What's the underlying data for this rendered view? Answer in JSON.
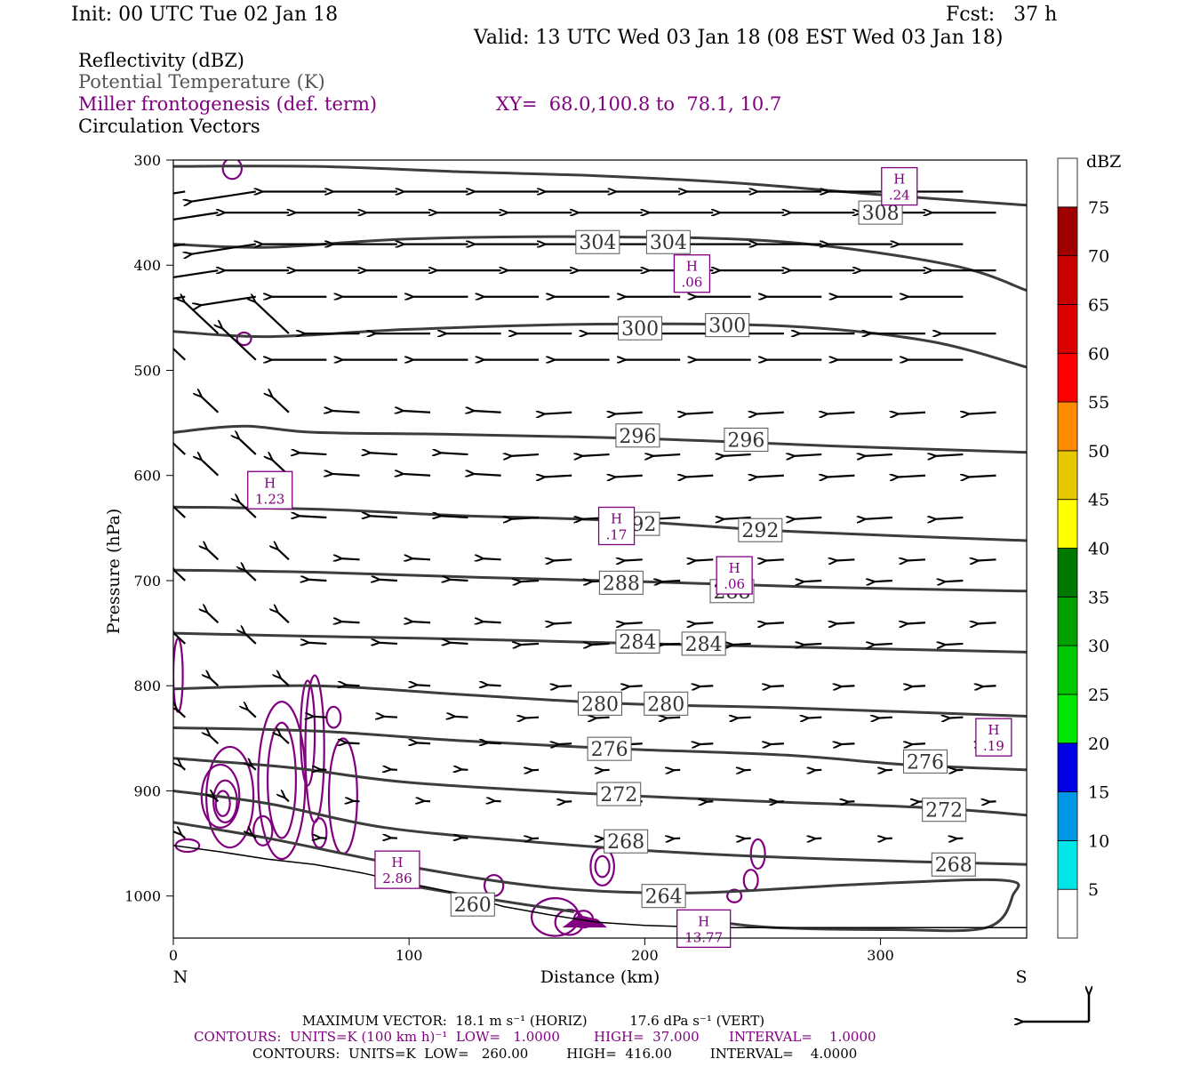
{
  "header": {
    "init": "Init: 00 UTC Tue 02 Jan 18",
    "fcst": "Fcst:   37 h",
    "valid": "Valid: 13 UTC Wed 03 Jan 18 (08 EST Wed 03 Jan 18)"
  },
  "legend": {
    "line1": "Reflectivity (dBZ)",
    "line2": "Potential Temperature (K)",
    "line3": "Miller frontogenesis (def. term)",
    "xy": "XY=  68.0,100.8 to  78.1, 10.7",
    "line4": "Circulation Vectors"
  },
  "colors": {
    "theta": "#3c3c3c",
    "fronto": "#800080",
    "vector": "#000000"
  },
  "chart_data": {
    "type": "cross-section",
    "xlabel": "Distance (km)",
    "ylabel": "Pressure (hPa)",
    "xlim": [
      0,
      362
    ],
    "ylim": [
      300,
      1040
    ],
    "x_ticks": [
      0,
      100,
      200,
      300
    ],
    "y_ticks": [
      300,
      400,
      500,
      600,
      700,
      800,
      900,
      1000
    ],
    "left_end_label": "N",
    "right_end_label": "S",
    "colorbar": {
      "title": "dBZ",
      "levels": [
        "5",
        "10",
        "15",
        "20",
        "25",
        "30",
        "35",
        "40",
        "45",
        "50",
        "55",
        "60",
        "65",
        "70",
        "75"
      ],
      "colors": [
        "#ffffff",
        "#00e6e6",
        "#0096e6",
        "#0000e6",
        "#00e600",
        "#00c800",
        "#00a000",
        "#007800",
        "#ffff00",
        "#e6c800",
        "#ff8c00",
        "#ff0000",
        "#dc0000",
        "#c80000",
        "#a00000",
        "#ff00ff",
        "#9650c8",
        "#ffffff"
      ]
    },
    "theta_contours": [
      {
        "value": 308,
        "points": [
          [
            0,
            306
          ],
          [
            60,
            306
          ],
          [
            120,
            311
          ],
          [
            180,
            315
          ],
          [
            240,
            322
          ],
          [
            300,
            333
          ],
          [
            362,
            343
          ]
        ],
        "labels": [
          [
            300,
            350
          ]
        ]
      },
      {
        "value": 304,
        "points": [
          [
            0,
            380
          ],
          [
            40,
            383
          ],
          [
            100,
            375
          ],
          [
            180,
            373
          ],
          [
            260,
            378
          ],
          [
            330,
            400
          ],
          [
            362,
            424
          ]
        ],
        "labels": [
          [
            180,
            378
          ],
          [
            210,
            378
          ]
        ]
      },
      {
        "value": 300,
        "points": [
          [
            0,
            463
          ],
          [
            40,
            468
          ],
          [
            100,
            461
          ],
          [
            180,
            456
          ],
          [
            260,
            458
          ],
          [
            320,
            472
          ],
          [
            362,
            497
          ]
        ],
        "labels": [
          [
            198,
            460
          ],
          [
            235,
            457
          ]
        ]
      },
      {
        "value": 296,
        "points": [
          [
            0,
            559
          ],
          [
            30,
            553
          ],
          [
            60,
            559
          ],
          [
            120,
            561
          ],
          [
            200,
            565
          ],
          [
            280,
            572
          ],
          [
            362,
            578
          ]
        ],
        "labels": [
          [
            197,
            562
          ],
          [
            243,
            566
          ]
        ]
      },
      {
        "value": 292,
        "points": [
          [
            0,
            630
          ],
          [
            60,
            632
          ],
          [
            120,
            638
          ],
          [
            190,
            643
          ],
          [
            260,
            653
          ],
          [
            362,
            662
          ]
        ],
        "labels": [
          [
            197,
            646
          ],
          [
            249,
            652
          ]
        ]
      },
      {
        "value": 288,
        "points": [
          [
            0,
            690
          ],
          [
            60,
            692
          ],
          [
            130,
            697
          ],
          [
            200,
            701
          ],
          [
            270,
            706
          ],
          [
            362,
            710
          ]
        ],
        "labels": [
          [
            190,
            702
          ],
          [
            237,
            710
          ]
        ]
      },
      {
        "value": 284,
        "points": [
          [
            0,
            750
          ],
          [
            60,
            753
          ],
          [
            130,
            756
          ],
          [
            200,
            760
          ],
          [
            280,
            764
          ],
          [
            362,
            768
          ]
        ],
        "labels": [
          [
            197,
            758
          ],
          [
            225,
            760
          ]
        ]
      },
      {
        "value": 280,
        "points": [
          [
            0,
            803
          ],
          [
            60,
            800
          ],
          [
            120,
            808
          ],
          [
            190,
            817
          ],
          [
            260,
            821
          ],
          [
            362,
            829
          ]
        ],
        "labels": [
          [
            181,
            817
          ],
          [
            209,
            817
          ]
        ]
      },
      {
        "value": 276,
        "points": [
          [
            0,
            840
          ],
          [
            60,
            843
          ],
          [
            120,
            852
          ],
          [
            190,
            860
          ],
          [
            260,
            866
          ],
          [
            310,
            875
          ],
          [
            362,
            880
          ]
        ],
        "labels": [
          [
            185,
            860
          ],
          [
            319,
            872
          ]
        ]
      },
      {
        "value": 272,
        "points": [
          [
            0,
            869
          ],
          [
            50,
            878
          ],
          [
            100,
            892
          ],
          [
            180,
            903
          ],
          [
            250,
            910
          ],
          [
            320,
            916
          ],
          [
            362,
            923
          ]
        ],
        "labels": [
          [
            189,
            903
          ],
          [
            327,
            918
          ]
        ]
      },
      {
        "value": 268,
        "points": [
          [
            0,
            900
          ],
          [
            40,
            912
          ],
          [
            90,
            935
          ],
          [
            150,
            948
          ],
          [
            210,
            958
          ],
          [
            280,
            965
          ],
          [
            362,
            970
          ]
        ],
        "labels": [
          [
            192,
            948
          ],
          [
            331,
            970
          ]
        ]
      },
      {
        "value": 264,
        "points": [
          [
            0,
            930
          ],
          [
            40,
            945
          ],
          [
            100,
            972
          ],
          [
            160,
            992
          ],
          [
            220,
            997
          ],
          [
            290,
            989
          ],
          [
            352,
            985
          ],
          [
            356,
            1000
          ],
          [
            345,
            1030
          ],
          [
            305,
            1032
          ],
          [
            255,
            1030
          ],
          [
            232,
            1025
          ]
        ],
        "labels": [
          [
            208,
            1000
          ]
        ]
      },
      {
        "value": 260,
        "points": [
          [
            100,
            990
          ],
          [
            140,
            1005
          ],
          [
            170,
            1015
          ]
        ],
        "labels": [
          [
            127,
            1008
          ]
        ]
      }
    ],
    "fronto_maxima": [
      {
        "label": "H",
        "value": ".24",
        "x": 308,
        "y": 325
      },
      {
        "label": "H",
        "value": ".06",
        "x": 220,
        "y": 408
      },
      {
        "label": "H",
        "value": "1.23",
        "x": 41,
        "y": 614
      },
      {
        "label": "H",
        "value": ".17",
        "x": 188,
        "y": 648
      },
      {
        "label": "H",
        "value": ".06",
        "x": 238,
        "y": 695
      },
      {
        "label": "H",
        "value": ".19",
        "x": 348,
        "y": 849
      },
      {
        "label": "H",
        "value": "2.86",
        "x": 95,
        "y": 975
      },
      {
        "label": "H",
        "value": "13.77",
        "x": 225,
        "y": 1031
      }
    ],
    "terrain": [
      [
        0,
        952
      ],
      [
        20,
        958
      ],
      [
        40,
        965
      ],
      [
        60,
        970
      ],
      [
        80,
        978
      ],
      [
        100,
        988
      ],
      [
        120,
        997
      ],
      [
        140,
        1010
      ],
      [
        160,
        1018
      ],
      [
        180,
        1025
      ],
      [
        200,
        1028
      ],
      [
        230,
        1030
      ],
      [
        260,
        1030
      ],
      [
        300,
        1030
      ],
      [
        362,
        1030
      ]
    ],
    "vector_scale": {
      "max_horiz": "18.1",
      "max_vert": "17.6"
    }
  },
  "footer": {
    "max_vector": "MAXIMUM VECTOR:  18.1 m s⁻¹ (HORIZ)          17.6 dPa s⁻¹ (VERT)",
    "contours1": "CONTOURS:  UNITS=K (100 km h)⁻¹  LOW=   1.0000        HIGH=  37.000       INTERVAL=    1.0000",
    "contours2": "CONTOURS:  UNITS=K  LOW=   260.00         HIGH=  416.00         INTERVAL=    4.0000"
  }
}
